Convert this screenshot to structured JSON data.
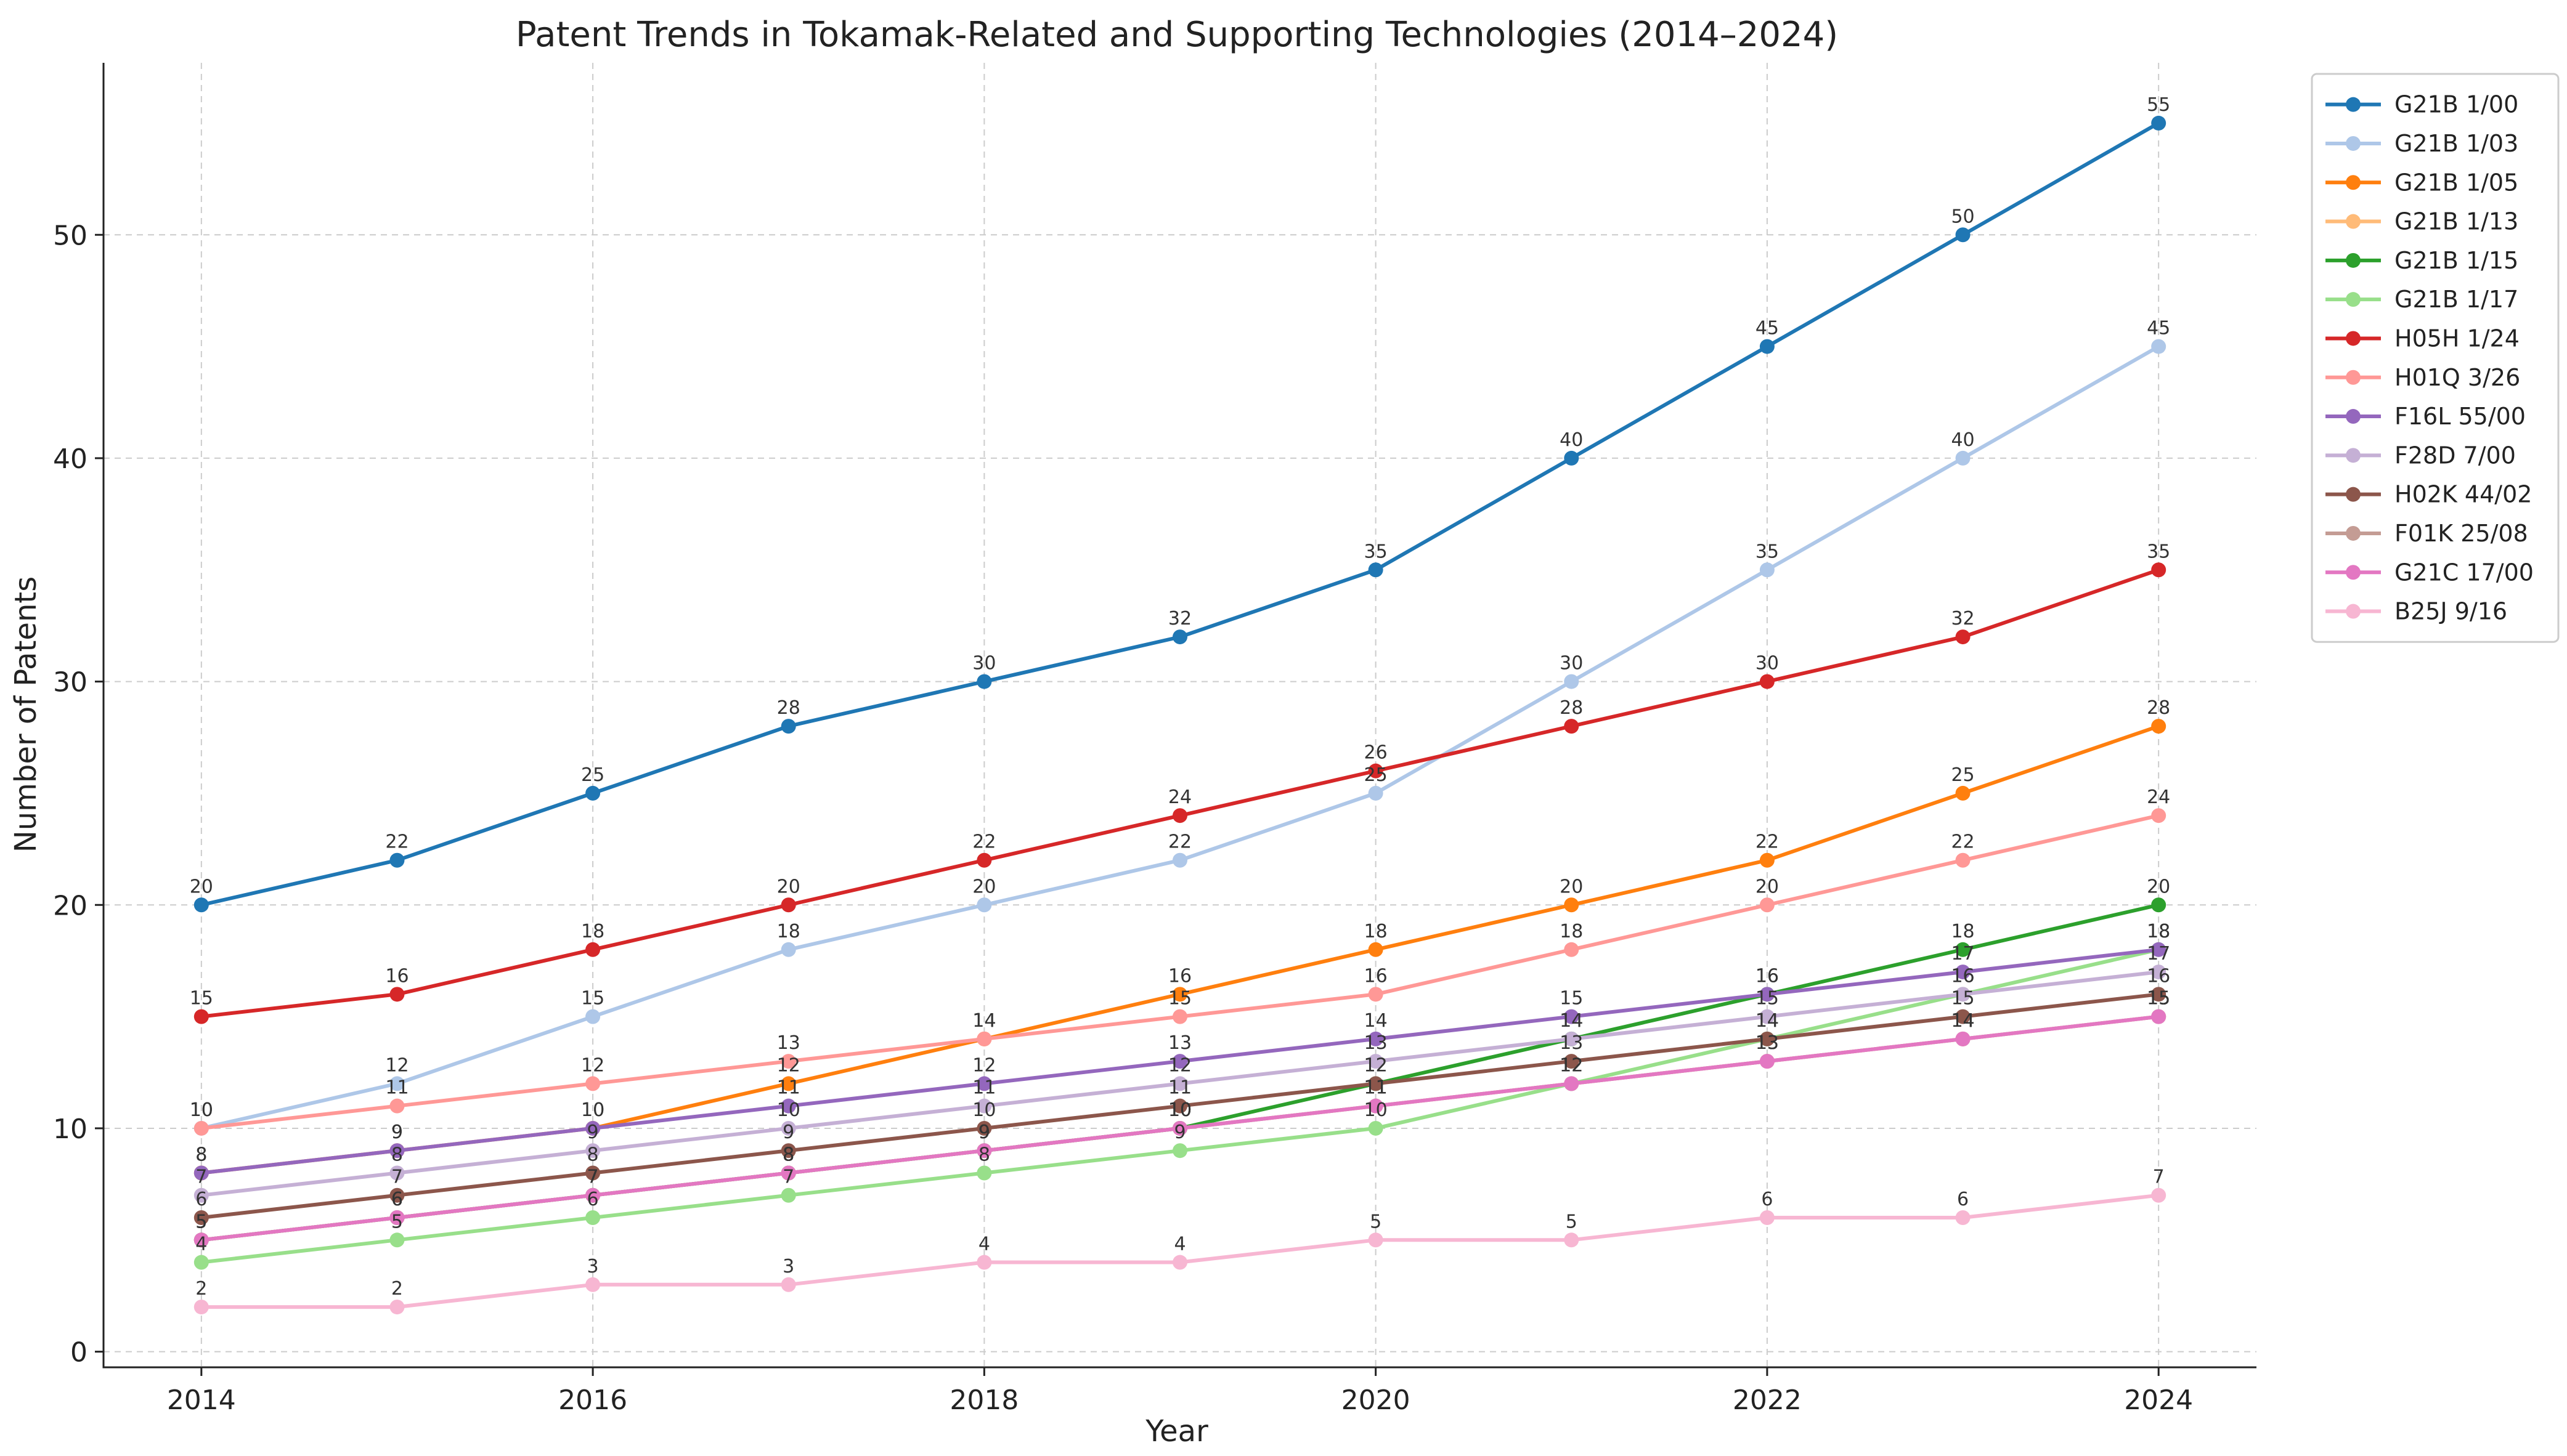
{
  "chart_data": {
    "type": "line",
    "title": "Patent Trends in Tokamak-Related and Supporting Technologies (2014–2024)",
    "xlabel": "Year",
    "ylabel": "Number of Patents",
    "x": [
      2014,
      2015,
      2016,
      2017,
      2018,
      2019,
      2020,
      2021,
      2022,
      2023,
      2024
    ],
    "xticks": [
      2014,
      2016,
      2018,
      2020,
      2022,
      2024
    ],
    "yticks": [
      0,
      10,
      20,
      30,
      40,
      50
    ],
    "xlim": [
      2013.5,
      2024.5
    ],
    "ylim": [
      -0.7,
      57.7
    ],
    "grid": true,
    "legend_position": "outside-right",
    "series": [
      {
        "name": "G21B 1/00",
        "color": "#1f77b4",
        "values": [
          20,
          22,
          25,
          28,
          30,
          32,
          35,
          40,
          45,
          50,
          55
        ]
      },
      {
        "name": "G21B 1/03",
        "color": "#aec7e8",
        "values": [
          10,
          12,
          15,
          18,
          20,
          22,
          25,
          30,
          35,
          40,
          45
        ]
      },
      {
        "name": "G21B 1/05",
        "color": "#ff7f0e",
        "values": [
          8,
          9,
          10,
          12,
          14,
          16,
          18,
          20,
          22,
          25,
          28
        ]
      },
      {
        "name": "G21B 1/13",
        "color": "#ffbb78",
        "values": [
          5,
          6,
          7,
          8,
          9,
          10,
          11,
          12,
          13,
          14,
          15
        ]
      },
      {
        "name": "G21B 1/15",
        "color": "#2ca02c",
        "values": [
          5,
          6,
          7,
          8,
          9,
          10,
          12,
          14,
          16,
          18,
          20
        ]
      },
      {
        "name": "G21B 1/17",
        "color": "#98df8a",
        "values": [
          4,
          5,
          6,
          7,
          8,
          9,
          10,
          12,
          14,
          16,
          18
        ]
      },
      {
        "name": "H05H 1/24",
        "color": "#d62728",
        "values": [
          15,
          16,
          18,
          20,
          22,
          24,
          26,
          28,
          30,
          32,
          35
        ]
      },
      {
        "name": "H01Q 3/26",
        "color": "#ff9896",
        "values": [
          10,
          11,
          12,
          13,
          14,
          15,
          16,
          18,
          20,
          22,
          24
        ]
      },
      {
        "name": "F16L 55/00",
        "color": "#9467bd",
        "values": [
          8,
          9,
          10,
          11,
          12,
          13,
          14,
          15,
          16,
          17,
          18
        ]
      },
      {
        "name": "F28D 7/00",
        "color": "#c5b0d5",
        "values": [
          7,
          8,
          9,
          10,
          11,
          12,
          13,
          14,
          15,
          16,
          17
        ]
      },
      {
        "name": "H02K 44/02",
        "color": "#8c564b",
        "values": [
          6,
          7,
          8,
          9,
          10,
          11,
          12,
          13,
          14,
          15,
          16
        ]
      },
      {
        "name": "F01K 25/08",
        "color": "#c49c94",
        "values": [
          5,
          6,
          7,
          8,
          9,
          10,
          11,
          12,
          13,
          14,
          15
        ]
      },
      {
        "name": "G21C 17/00",
        "color": "#e377c2",
        "values": [
          5,
          6,
          7,
          8,
          9,
          10,
          11,
          12,
          13,
          14,
          15
        ]
      },
      {
        "name": "B25J 9/16",
        "color": "#f7b6d2",
        "values": [
          2,
          2,
          3,
          3,
          4,
          4,
          5,
          5,
          6,
          6,
          7
        ]
      }
    ]
  }
}
